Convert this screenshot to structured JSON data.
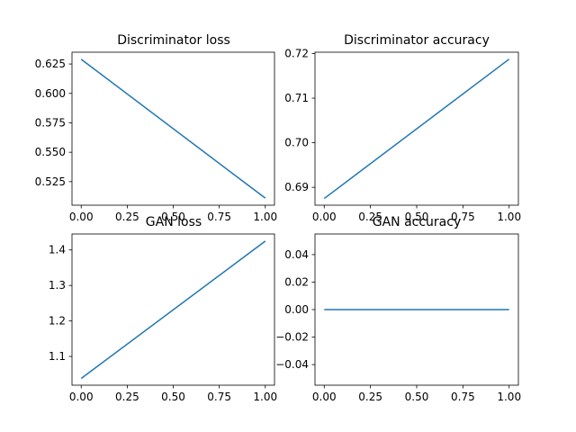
{
  "chart_data": [
    {
      "type": "line",
      "title": "Discriminator loss",
      "xlabel": "",
      "ylabel": "",
      "x": [
        0,
        1
      ],
      "series": [
        {
          "values": [
            0.629,
            0.511
          ]
        }
      ],
      "xlim": [
        -0.05,
        1.05
      ],
      "ylim": [
        0.505,
        0.635
      ],
      "xticks": [
        0.0,
        0.25,
        0.5,
        0.75,
        1.0
      ],
      "xtick_labels": [
        "0.00",
        "0.25",
        "0.50",
        "0.75",
        "1.00"
      ],
      "yticks": [
        0.525,
        0.55,
        0.575,
        0.6,
        0.625
      ],
      "ytick_labels": [
        "0.525",
        "0.550",
        "0.575",
        "0.600",
        "0.625"
      ],
      "grid": false
    },
    {
      "type": "line",
      "title": "Discriminator accuracy",
      "xlabel": "",
      "ylabel": "",
      "x": [
        0,
        1
      ],
      "series": [
        {
          "values": [
            0.6875,
            0.71875
          ]
        }
      ],
      "xlim": [
        -0.05,
        1.05
      ],
      "ylim": [
        0.686,
        0.7203
      ],
      "xticks": [
        0.0,
        0.25,
        0.5,
        0.75,
        1.0
      ],
      "xtick_labels": [
        "0.00",
        "0.25",
        "0.50",
        "0.75",
        "1.00"
      ],
      "yticks": [
        0.69,
        0.7,
        0.71,
        0.72
      ],
      "ytick_labels": [
        "0.69",
        "0.70",
        "0.71",
        "0.72"
      ],
      "grid": false
    },
    {
      "type": "line",
      "title": "GAN loss",
      "xlabel": "",
      "ylabel": "",
      "x": [
        0,
        1
      ],
      "series": [
        {
          "values": [
            1.038,
            1.425
          ]
        }
      ],
      "xlim": [
        -0.05,
        1.05
      ],
      "ylim": [
        1.019,
        1.445
      ],
      "xticks": [
        0.0,
        0.25,
        0.5,
        0.75,
        1.0
      ],
      "xtick_labels": [
        "0.00",
        "0.25",
        "0.50",
        "0.75",
        "1.00"
      ],
      "yticks": [
        1.1,
        1.2,
        1.3,
        1.4
      ],
      "ytick_labels": [
        "1.1",
        "1.2",
        "1.3",
        "1.4"
      ],
      "grid": false
    },
    {
      "type": "line",
      "title": "GAN accuracy",
      "xlabel": "",
      "ylabel": "",
      "x": [
        0,
        1
      ],
      "series": [
        {
          "values": [
            0.0,
            0.0
          ]
        }
      ],
      "xlim": [
        -0.05,
        1.05
      ],
      "ylim": [
        -0.055,
        0.055
      ],
      "xticks": [
        0.0,
        0.25,
        0.5,
        0.75,
        1.0
      ],
      "xtick_labels": [
        "0.00",
        "0.25",
        "0.50",
        "0.75",
        "1.00"
      ],
      "yticks": [
        -0.04,
        -0.02,
        0.0,
        0.02,
        0.04
      ],
      "ytick_labels": [
        "−0.04",
        "−0.02",
        "0.00",
        "0.02",
        "0.04"
      ],
      "grid": false
    }
  ],
  "colors": {
    "line": "#1f77b4",
    "axes": "#000000",
    "background": "#ffffff"
  }
}
